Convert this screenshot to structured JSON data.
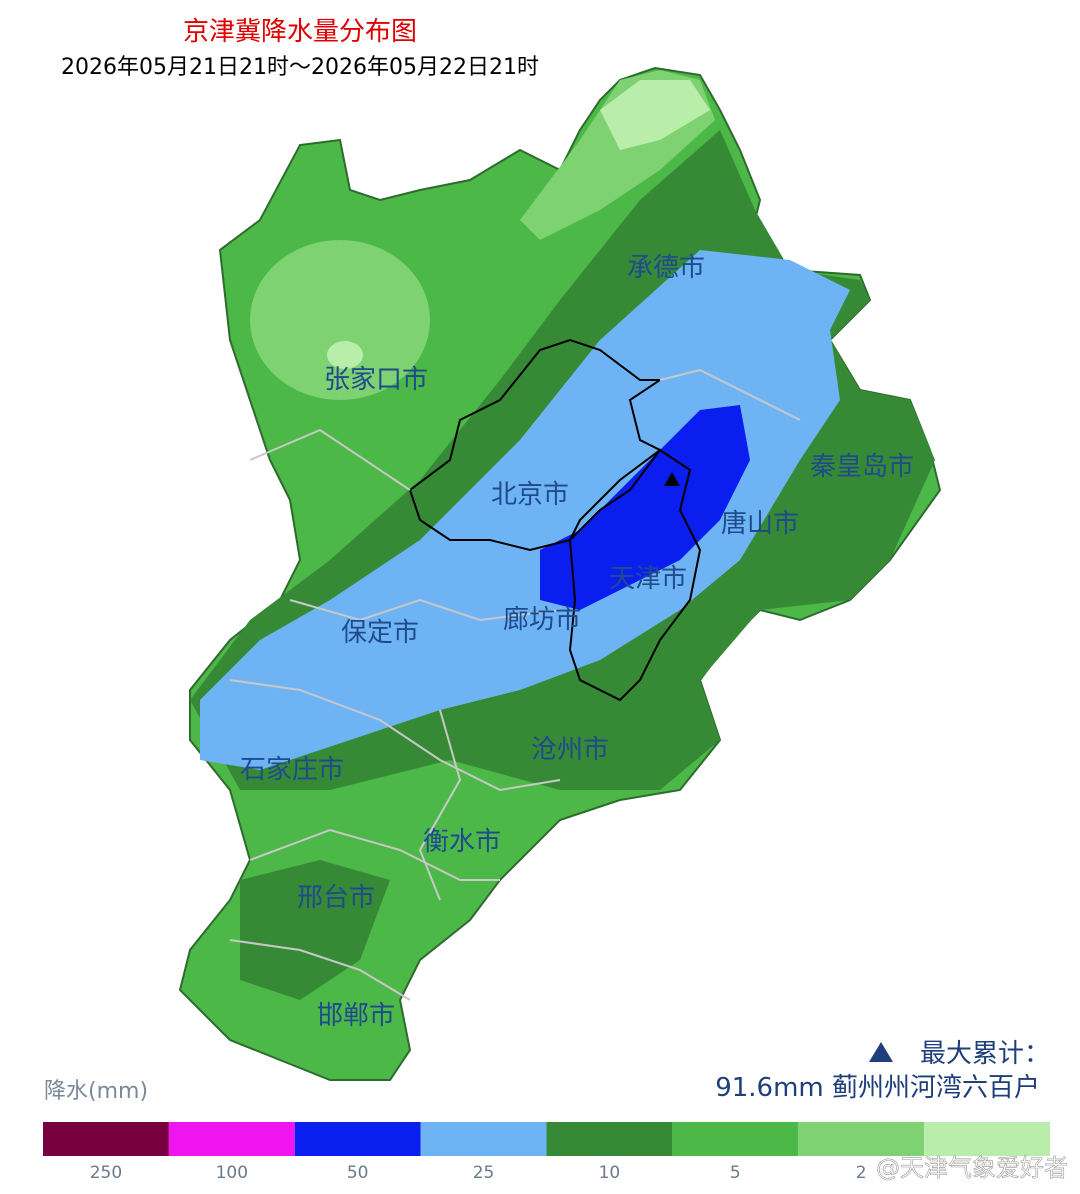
{
  "header": {
    "title": "京津冀降水量分布图",
    "subtitle": "2026年05月21日21时～2026年05月22日21时"
  },
  "map": {
    "cities": [
      {
        "label": "承德市"
      },
      {
        "label": "张家口市"
      },
      {
        "label": "北京市"
      },
      {
        "label": "秦皇岛市"
      },
      {
        "label": "唐山市"
      },
      {
        "label": "天津市"
      },
      {
        "label": "廊坊市"
      },
      {
        "label": "保定市"
      },
      {
        "label": "沧州市"
      },
      {
        "label": "石家庄市"
      },
      {
        "label": "衡水市"
      },
      {
        "label": "邢台市"
      },
      {
        "label": "邯郸市"
      }
    ]
  },
  "annotation": {
    "title": "最大累计：",
    "detail": "91.6mm 蓟州州河湾六百户"
  },
  "legend": {
    "title": "降水(mm)",
    "items": [
      {
        "color": "#780040",
        "label": 250
      },
      {
        "color": "#f014f0",
        "label": 100
      },
      {
        "color": "#0a1ef0",
        "label": 50
      },
      {
        "color": "#6eb4f5",
        "label": 25
      },
      {
        "color": "#368a36",
        "label": 10
      },
      {
        "color": "#4cb848",
        "label": 5
      },
      {
        "color": "#7ed272",
        "label": 2
      },
      {
        "color": "#b8eeaa",
        "label": null
      }
    ]
  },
  "watermark": "@天津气象爱好者"
}
